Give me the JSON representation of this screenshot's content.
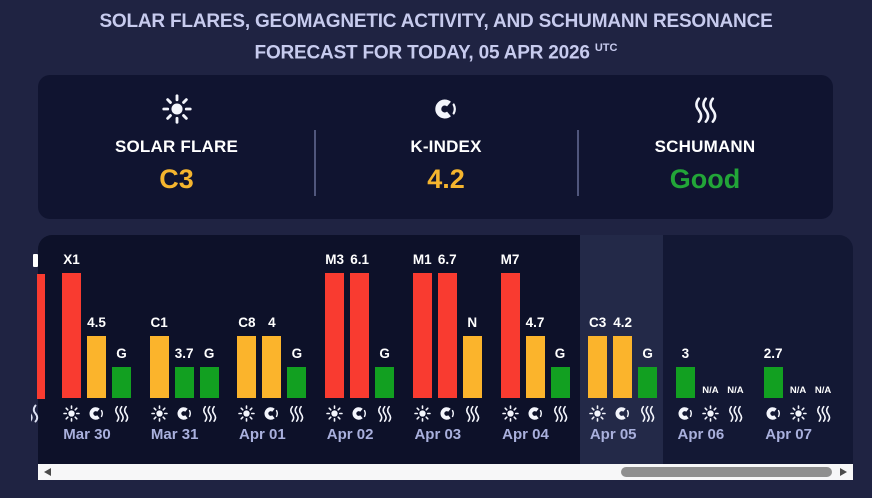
{
  "title": {
    "line1": "SOLAR FLARES, GEOMAGNETIC ACTIVITY, AND SCHUMANN RESONANCE",
    "line2": "FORECAST FOR TODAY, 05 APR 2026",
    "line2_superscript": "UTC"
  },
  "summary_card": {
    "items": [
      {
        "id": "solar-flare",
        "icon": "sun-icon",
        "label": "SOLAR FLARE",
        "value": "C3",
        "value_color": "#f5b52e"
      },
      {
        "id": "k-index",
        "icon": "magnet-icon",
        "label": "K-INDEX",
        "value": "4.2",
        "value_color": "#f5b52e"
      },
      {
        "id": "schumann",
        "icon": "waves-icon",
        "label": "SCHUMANN",
        "value": "Good",
        "value_color": "#22a538"
      }
    ]
  },
  "chart_data": {
    "type": "bar",
    "metrics": [
      "solar_flare",
      "k_index",
      "schumann"
    ],
    "legend": {
      "solar_flare_icon": "sun-icon",
      "k_index_icon": "magnet-icon",
      "schumann_icon": "waves-icon"
    },
    "severity_levels": {
      "high": "tall red bar",
      "medium": "medium yellow bar",
      "low": "short green bar"
    },
    "colors": {
      "red": "#f93b30",
      "yellow": "#fbb42c",
      "green": "#12a021"
    },
    "days": [
      {
        "date": "Mar 30",
        "period": "past",
        "bars": [
          {
            "metric": "solar_flare",
            "label": "X1",
            "severity": "high",
            "color": "#f93b30"
          },
          {
            "metric": "k_index",
            "label": "4.5",
            "severity": "medium",
            "color": "#fbb42c"
          },
          {
            "metric": "schumann",
            "label": "G",
            "severity": "low",
            "color": "#12a021"
          }
        ]
      },
      {
        "date": "Mar 31",
        "period": "past",
        "bars": [
          {
            "metric": "solar_flare",
            "label": "C1",
            "severity": "medium",
            "color": "#fbb42c"
          },
          {
            "metric": "k_index",
            "label": "3.7",
            "severity": "low",
            "color": "#12a021"
          },
          {
            "metric": "schumann",
            "label": "G",
            "severity": "low",
            "color": "#12a021"
          }
        ]
      },
      {
        "date": "Apr 01",
        "period": "past",
        "bars": [
          {
            "metric": "solar_flare",
            "label": "C8",
            "severity": "medium",
            "color": "#fbb42c"
          },
          {
            "metric": "k_index",
            "label": "4",
            "severity": "medium",
            "color": "#fbb42c"
          },
          {
            "metric": "schumann",
            "label": "G",
            "severity": "low",
            "color": "#12a021"
          }
        ]
      },
      {
        "date": "Apr 02",
        "period": "past",
        "bars": [
          {
            "metric": "solar_flare",
            "label": "M3",
            "severity": "high",
            "color": "#f93b30"
          },
          {
            "metric": "k_index",
            "label": "6.1",
            "severity": "high",
            "color": "#f93b30"
          },
          {
            "metric": "schumann",
            "label": "G",
            "severity": "low",
            "color": "#12a021"
          }
        ]
      },
      {
        "date": "Apr 03",
        "period": "past",
        "bars": [
          {
            "metric": "solar_flare",
            "label": "M1",
            "severity": "high",
            "color": "#f93b30"
          },
          {
            "metric": "k_index",
            "label": "6.7",
            "severity": "high",
            "color": "#f93b30"
          },
          {
            "metric": "schumann",
            "label": "N",
            "severity": "medium",
            "color": "#fbb42c"
          }
        ]
      },
      {
        "date": "Apr 04",
        "period": "past",
        "bars": [
          {
            "metric": "solar_flare",
            "label": "M7",
            "severity": "high",
            "color": "#f93b30"
          },
          {
            "metric": "k_index",
            "label": "4.7",
            "severity": "medium",
            "color": "#fbb42c"
          },
          {
            "metric": "schumann",
            "label": "G",
            "severity": "low",
            "color": "#12a021"
          }
        ]
      },
      {
        "date": "Apr 05",
        "period": "today",
        "bars": [
          {
            "metric": "solar_flare",
            "label": "C3",
            "severity": "medium",
            "color": "#fbb42c"
          },
          {
            "metric": "k_index",
            "label": "4.2",
            "severity": "medium",
            "color": "#fbb42c"
          },
          {
            "metric": "schumann",
            "label": "G",
            "severity": "low",
            "color": "#12a021"
          }
        ]
      },
      {
        "date": "Apr 06",
        "period": "future",
        "bars": [
          {
            "metric": "k_index",
            "label": "3",
            "severity": "low",
            "color": "#12a021"
          },
          {
            "metric": "solar_flare",
            "label": "N/A",
            "na": true
          },
          {
            "metric": "schumann",
            "label": "N/A",
            "na": true
          }
        ]
      },
      {
        "date": "Apr 07",
        "period": "future",
        "bars": [
          {
            "metric": "k_index",
            "label": "2.7",
            "severity": "low",
            "color": "#12a021"
          },
          {
            "metric": "solar_flare",
            "label": "N/A",
            "na": true
          },
          {
            "metric": "schumann",
            "label": "N/A",
            "na": true
          }
        ]
      }
    ],
    "clipped_previous_day": {
      "visible": true,
      "visible_bar_severity": "high",
      "visible_bar_color": "#f93b30"
    }
  },
  "scrollbar": {
    "orientation": "horizontal",
    "thumb_position": "right"
  }
}
